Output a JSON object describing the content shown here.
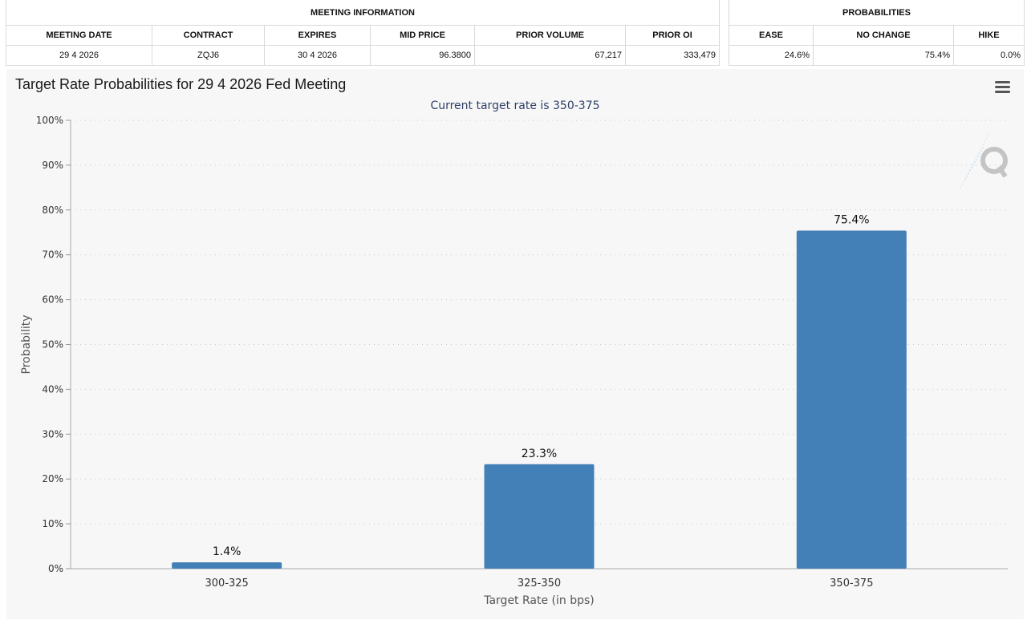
{
  "meeting_info": {
    "group_label": "MEETING INFORMATION",
    "headers": [
      "MEETING DATE",
      "CONTRACT",
      "EXPIRES",
      "MID PRICE",
      "PRIOR VOLUME",
      "PRIOR OI"
    ],
    "row": [
      "29 4 2026",
      "ZQJ6",
      "30 4 2026",
      "96.3800",
      "67,217",
      "333,479"
    ]
  },
  "probabilities": {
    "group_label": "PROBABILITIES",
    "headers": [
      "EASE",
      "NO CHANGE",
      "HIKE"
    ],
    "row": [
      "24.6%",
      "75.4%",
      "0.0%"
    ]
  },
  "icons": {
    "menu": "hamburger-menu-icon",
    "logo": "q-logo-icon"
  },
  "chart_data": {
    "type": "bar",
    "title": "Target Rate Probabilities for 29 4 2026 Fed Meeting",
    "subtitle": "Current target rate is 350-375",
    "xlabel": "Target Rate (in bps)",
    "ylabel": "Probability",
    "categories": [
      "300-325",
      "325-350",
      "350-375"
    ],
    "values": [
      1.4,
      23.3,
      75.4
    ],
    "data_labels": [
      "1.4%",
      "23.3%",
      "75.4%"
    ],
    "ylim": [
      0,
      100
    ],
    "y_ticks": [
      "0%",
      "10%",
      "20%",
      "30%",
      "40%",
      "50%",
      "60%",
      "70%",
      "80%",
      "90%",
      "100%"
    ],
    "grid": true,
    "bar_color": "#4380b8"
  }
}
